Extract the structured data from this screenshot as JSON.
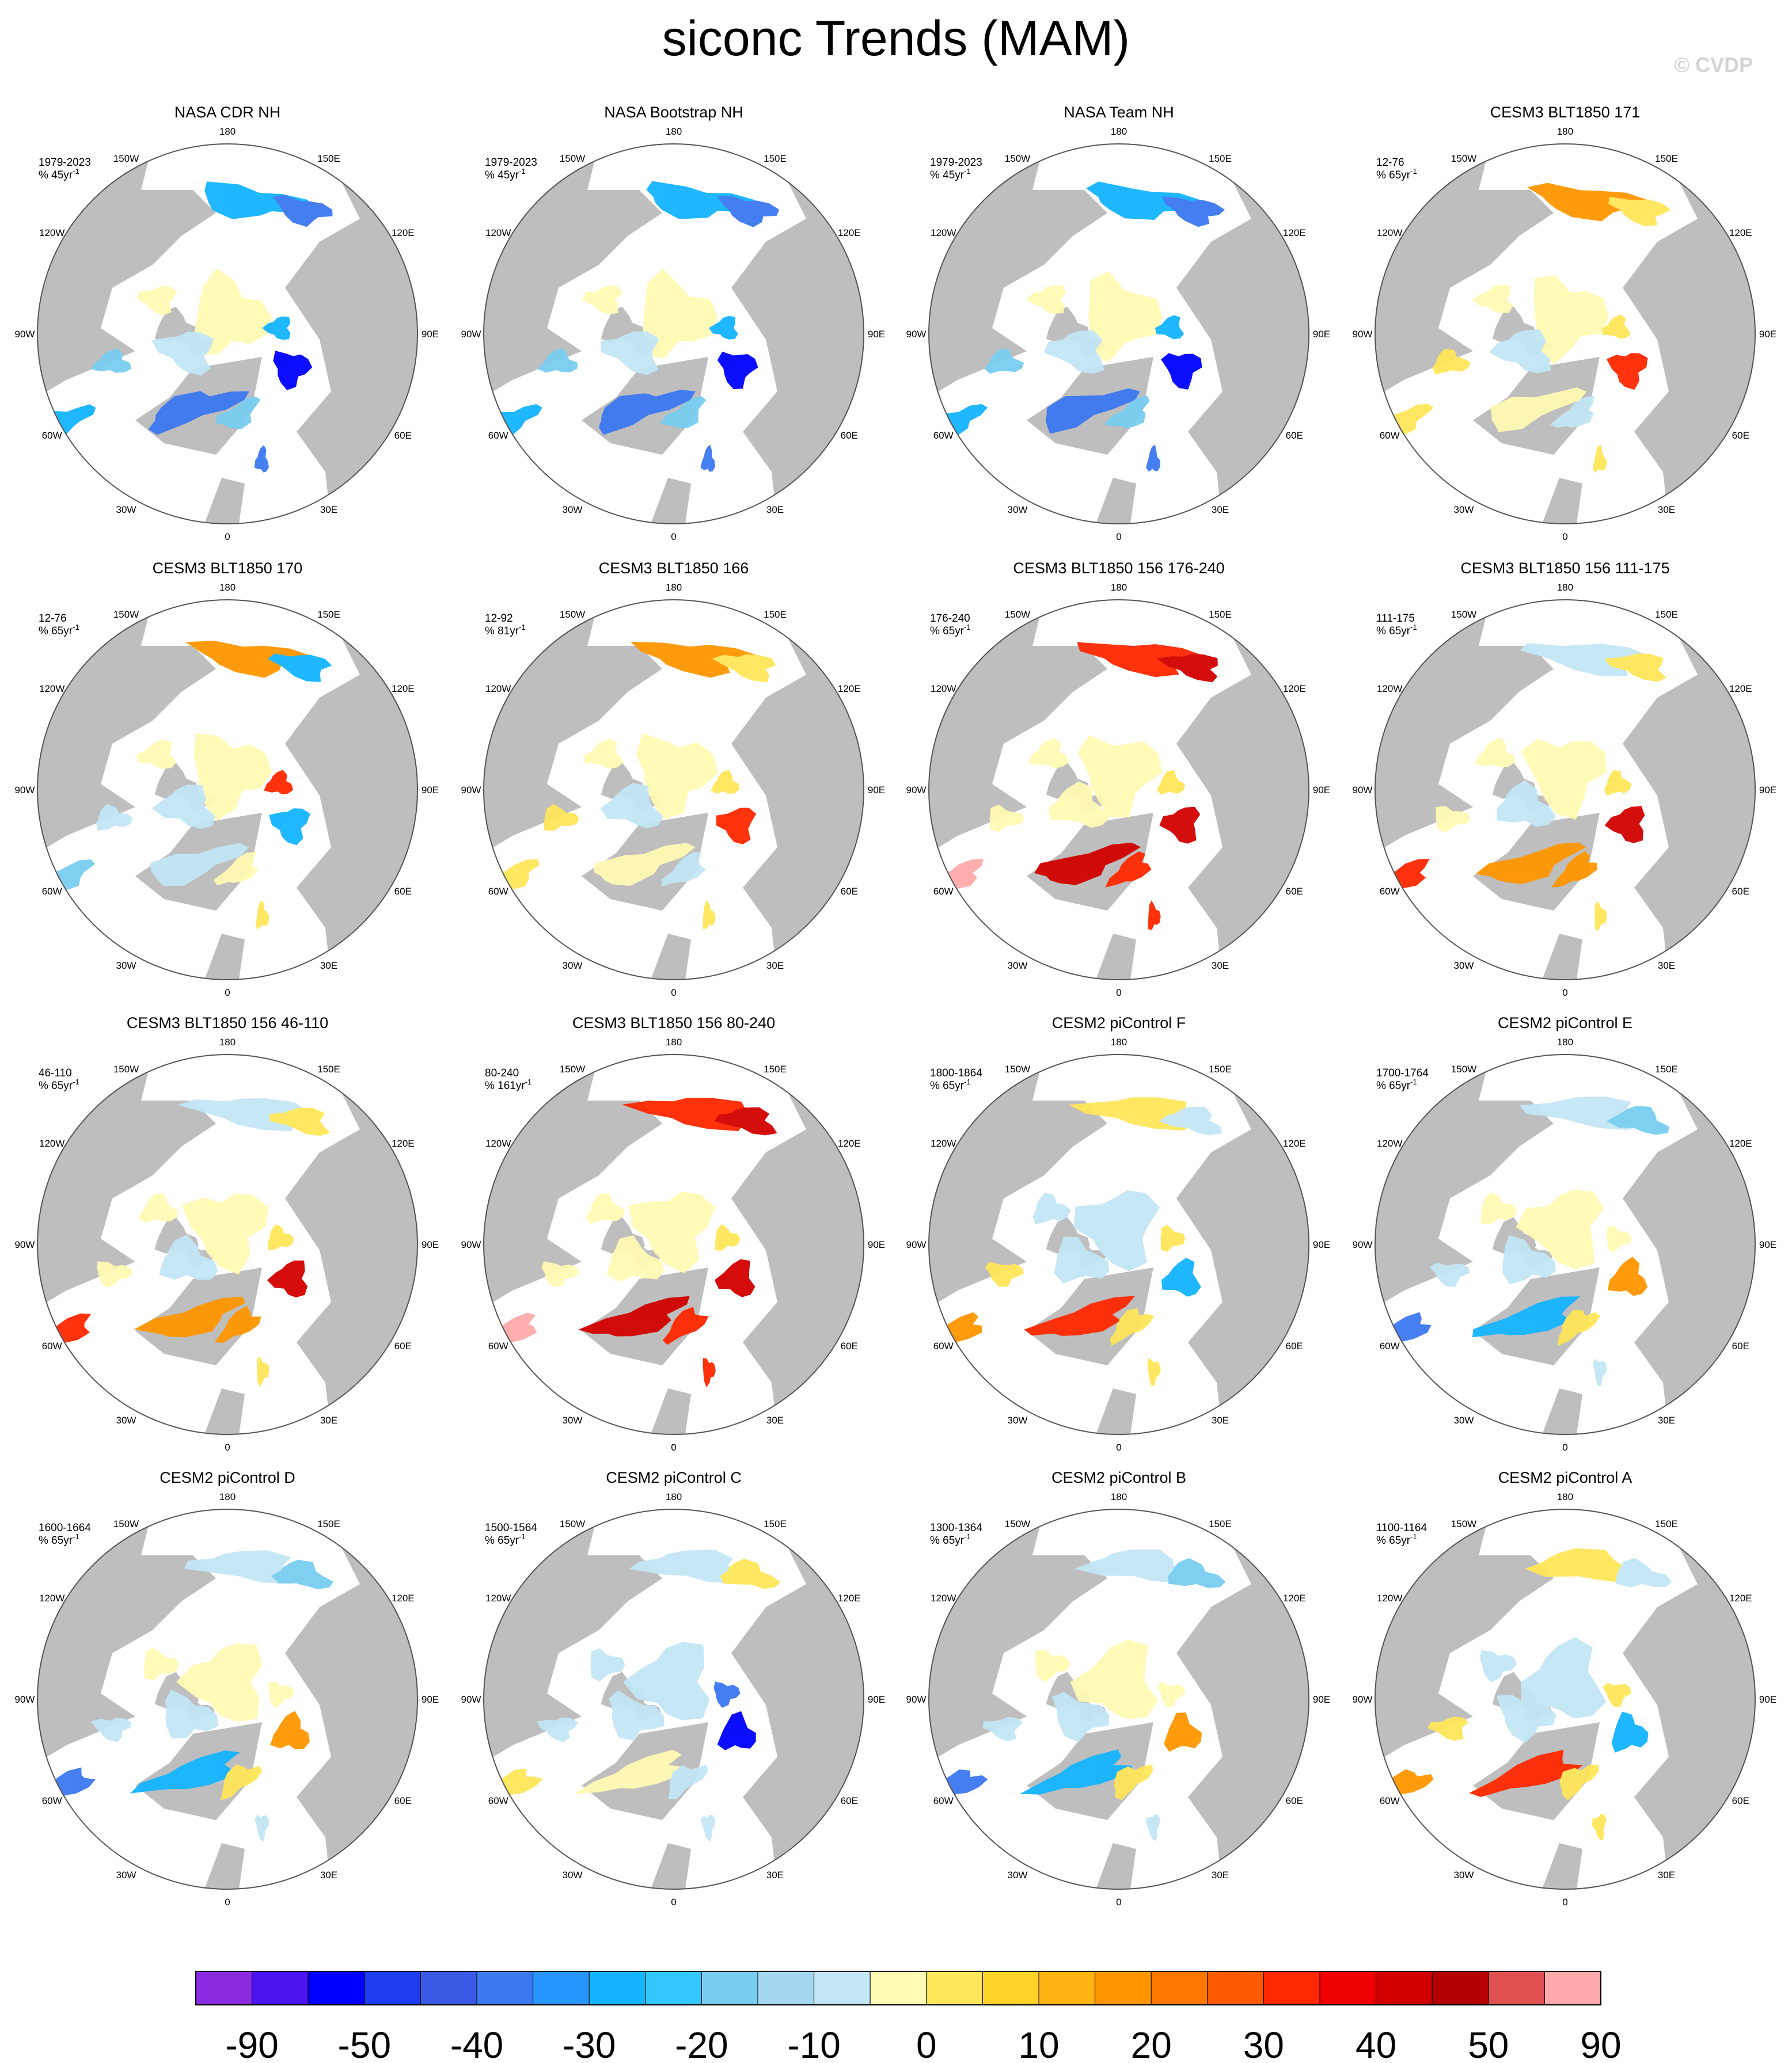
{
  "title": "siconc Trends (MAM)",
  "copyright": "© CVDP",
  "panels": [
    {
      "title": "NASA CDR NH",
      "period": "1979-2023",
      "unit": "% 45yr",
      "pattern": "obs"
    },
    {
      "title": "NASA Bootstrap NH",
      "period": "1979-2023",
      "unit": "% 45yr",
      "pattern": "obs"
    },
    {
      "title": "NASA Team NH",
      "period": "1979-2023",
      "unit": "% 45yr",
      "pattern": "obs"
    },
    {
      "title": "CESM3 BLT1850 171",
      "period": "12-76",
      "unit": "% 65yr",
      "pattern": "warm-pacific"
    },
    {
      "title": "CESM3 BLT1850 170",
      "period": "12-76",
      "unit": "% 65yr",
      "pattern": "mixed"
    },
    {
      "title": "CESM3 BLT1850 166",
      "period": "12-92",
      "unit": "% 81yr",
      "pattern": "warm-pacific"
    },
    {
      "title": "CESM3 BLT1850 156 176-240",
      "period": "176-240",
      "unit": "% 65yr",
      "pattern": "strong-warm"
    },
    {
      "title": "CESM3 BLT1850 156 111-175",
      "period": "111-175",
      "unit": "% 65yr",
      "pattern": "warm-atlantic"
    },
    {
      "title": "CESM3 BLT1850 156 46-110",
      "period": "46-110",
      "unit": "% 65yr",
      "pattern": "warm-atlantic"
    },
    {
      "title": "CESM3 BLT1850 156 80-240",
      "period": "80-240",
      "unit": "% 161yr",
      "pattern": "strong-warm"
    },
    {
      "title": "CESM2 piControl F",
      "period": "1800-1864",
      "unit": "% 65yr",
      "pattern": "mixed-blue"
    },
    {
      "title": "CESM2 piControl E",
      "period": "1700-1764",
      "unit": "% 65yr",
      "pattern": "cool-atlantic"
    },
    {
      "title": "CESM2 piControl D",
      "period": "1600-1664",
      "unit": "% 65yr",
      "pattern": "cool-atlantic"
    },
    {
      "title": "CESM2 piControl C",
      "period": "1500-1564",
      "unit": "% 65yr",
      "pattern": "cool-barents"
    },
    {
      "title": "CESM2 piControl B",
      "period": "1300-1364",
      "unit": "% 65yr",
      "pattern": "cool-atlantic"
    },
    {
      "title": "CESM2 piControl A",
      "period": "1100-1164",
      "unit": "% 65yr",
      "pattern": "mixed-blue"
    }
  ],
  "unit_superscript": "-1",
  "lon_labels": [
    "180",
    "150E",
    "120E",
    "90E",
    "60E",
    "30E",
    "0",
    "30W",
    "60W",
    "90W",
    "120W",
    "150W"
  ],
  "colorbar": {
    "labels": [
      "-90",
      "-50",
      "-40",
      "-30",
      "-20",
      "-10",
      "0",
      "10",
      "20",
      "30",
      "40",
      "50",
      "90"
    ],
    "colors": [
      "#8a2be2",
      "#4b14f0",
      "#0000ff",
      "#1e3cf0",
      "#3a5ae6",
      "#3c78f0",
      "#2896ff",
      "#14b4ff",
      "#32c8ff",
      "#78cdf0",
      "#a5d7f0",
      "#c3e6f5",
      "#fffab4",
      "#ffe65a",
      "#ffd228",
      "#ffb414",
      "#ff9600",
      "#ff7800",
      "#ff5a00",
      "#ff2800",
      "#f00000",
      "#d20000",
      "#b40000",
      "#e15050",
      "#ffaaaa"
    ]
  },
  "legend_colors": {
    "land": "#bebebe",
    "ocean": "#ffffff"
  }
}
